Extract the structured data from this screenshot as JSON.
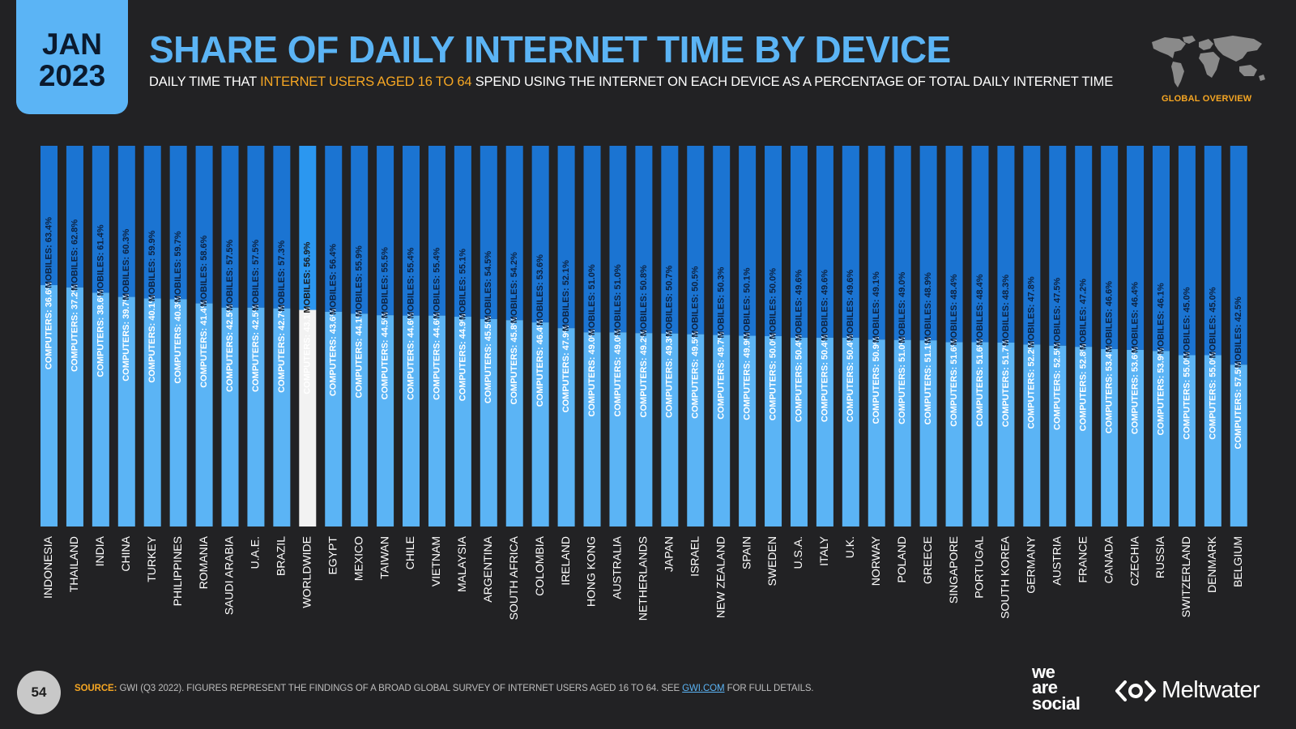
{
  "header": {
    "month": "JAN",
    "year": "2023",
    "title": "SHARE OF DAILY INTERNET TIME BY DEVICE",
    "subtitle_pre": "DAILY TIME THAT ",
    "subtitle_highlight": "INTERNET USERS AGED 16 TO 64",
    "subtitle_post": " SPEND USING THE INTERNET ON EACH DEVICE AS A PERCENTAGE OF TOTAL DAILY INTERNET TIME",
    "global_overview": "GLOBAL OVERVIEW"
  },
  "colors": {
    "background": "#222224",
    "accent_blue": "#5bb4f5",
    "orange": "#f5a623",
    "computers_bar": "#1b74d2",
    "mobiles_bar": "#5bb4f5",
    "worldwide_computers_bar": "#2b97f0",
    "worldwide_mobiles_bar": "#f2f2f2"
  },
  "chart_data": {
    "type": "bar",
    "stacked": true,
    "orientation": "vertical",
    "ylim": [
      0,
      100
    ],
    "categories": [
      "INDONESIA",
      "THAILAND",
      "INDIA",
      "CHINA",
      "TURKEY",
      "PHILIPPINES",
      "ROMANIA",
      "SAUDI ARABIA",
      "U.A.E.",
      "BRAZIL",
      "WORLDWIDE",
      "EGYPT",
      "MEXICO",
      "TAIWAN",
      "CHILE",
      "VIETNAM",
      "MALAYSIA",
      "ARGENTINA",
      "SOUTH AFRICA",
      "COLOMBIA",
      "IRELAND",
      "HONG KONG",
      "AUSTRALIA",
      "NETHERLANDS",
      "JAPAN",
      "ISRAEL",
      "NEW ZEALAND",
      "SPAIN",
      "SWEDEN",
      "U.S.A.",
      "ITALY",
      "U.K.",
      "NORWAY",
      "POLAND",
      "GREECE",
      "SINGAPORE",
      "PORTUGAL",
      "SOUTH KOREA",
      "GERMANY",
      "AUSTRIA",
      "FRANCE",
      "CANADA",
      "CZECHIA",
      "RUSSIA",
      "SWITZERLAND",
      "DENMARK",
      "BELGIUM"
    ],
    "highlight_category": "WORLDWIDE",
    "series": [
      {
        "name": "MOBILES",
        "label_prefix": "MOBILES: ",
        "values": [
          63.4,
          62.8,
          61.4,
          60.3,
          59.9,
          59.7,
          58.6,
          57.5,
          57.5,
          57.3,
          56.9,
          56.4,
          55.9,
          55.5,
          55.4,
          55.4,
          55.1,
          54.5,
          54.2,
          53.6,
          52.1,
          51.0,
          51.0,
          50.8,
          50.7,
          50.5,
          50.3,
          50.1,
          50.0,
          49.6,
          49.6,
          49.6,
          49.1,
          49.0,
          48.9,
          48.4,
          48.4,
          48.3,
          47.8,
          47.5,
          47.2,
          46.6,
          46.4,
          46.1,
          45.0,
          45.0,
          42.5
        ]
      },
      {
        "name": "COMPUTERS",
        "label_prefix": "COMPUTERS: ",
        "values": [
          36.6,
          37.2,
          38.6,
          39.7,
          40.1,
          40.3,
          41.4,
          42.5,
          42.5,
          42.7,
          43.1,
          43.6,
          44.1,
          44.5,
          44.6,
          44.6,
          44.9,
          45.5,
          45.8,
          46.4,
          47.9,
          49.0,
          49.0,
          49.2,
          49.3,
          49.5,
          49.7,
          49.9,
          50.0,
          50.4,
          50.4,
          50.4,
          50.9,
          51.0,
          51.1,
          51.6,
          51.6,
          51.7,
          52.2,
          52.5,
          52.8,
          53.4,
          53.6,
          53.9,
          55.0,
          55.0,
          57.5
        ]
      }
    ]
  },
  "footer": {
    "page_number": "54",
    "source_label": "SOURCE:",
    "source_text": " GWI (Q3 2022). FIGURES REPRESENT THE FINDINGS OF A BROAD GLOBAL SURVEY OF INTERNET USERS AGED 16 TO 64. SEE ",
    "source_link": "GWI.COM",
    "source_end": " FOR FULL DETAILS.",
    "logo_we": "we",
    "logo_are": "are",
    "logo_social": "social",
    "logo_meltwater": "Meltwater"
  }
}
